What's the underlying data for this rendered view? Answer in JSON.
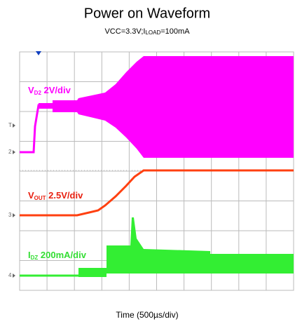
{
  "header": {
    "title": "Power on Waveform",
    "subtitle": {
      "prefix": "VCC=3.3V;I",
      "subscript": "LOAD",
      "suffix": "=100mA"
    }
  },
  "traces": [
    {
      "symbol": "V",
      "subscript": "D2",
      "scale": " 2V/div",
      "marker": "2"
    },
    {
      "symbol": "V",
      "subscript": "OUT",
      "scale": " 2.5V/div",
      "marker": "3"
    },
    {
      "symbol": "I",
      "subscript": "DZ",
      "scale": " 200mA/div",
      "marker": "4"
    }
  ],
  "trigger_marker": "T",
  "x_label": "Time (500µs/div)"
}
